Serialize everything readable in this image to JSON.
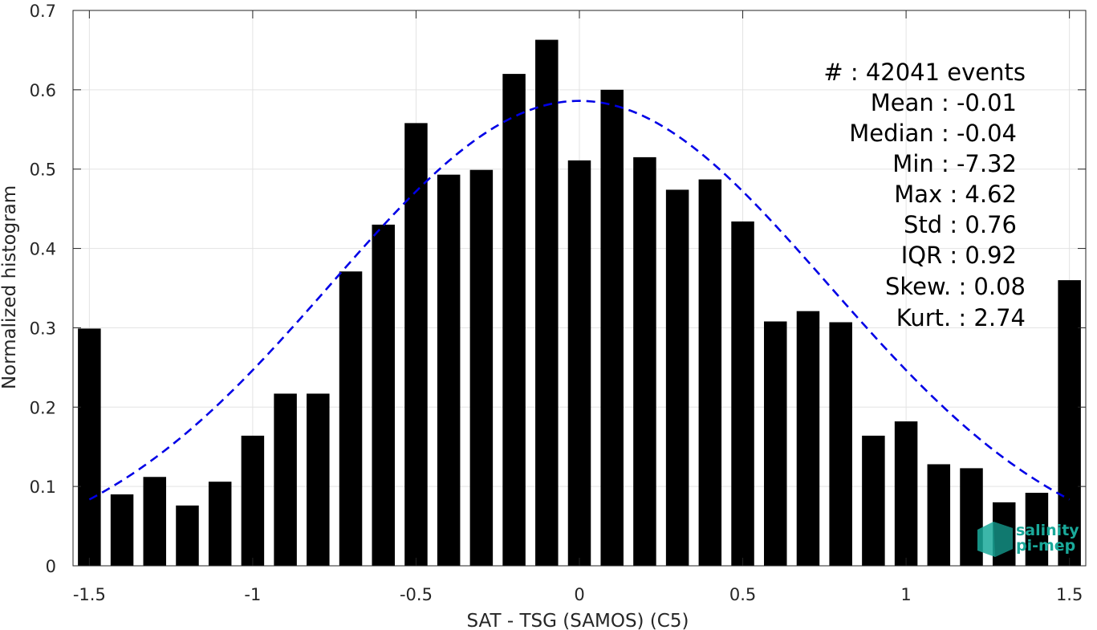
{
  "chart_data": {
    "type": "bar",
    "xlabel": "SAT - TSG (SAMOS) (C5)",
    "ylabel": "Normalized histogram",
    "xlim": [
      -1.55,
      1.55
    ],
    "ylim": [
      0,
      0.7
    ],
    "xticks": [
      -1.5,
      -1,
      -0.5,
      0,
      0.5,
      1,
      1.5
    ],
    "xtick_labels": [
      "-1.5",
      "-1",
      "-0.5",
      "0",
      "0.5",
      "1",
      "1.5"
    ],
    "yticks": [
      0,
      0.1,
      0.2,
      0.3,
      0.4,
      0.5,
      0.6,
      0.7
    ],
    "ytick_labels": [
      "0",
      "0.1",
      "0.2",
      "0.3",
      "0.4",
      "0.5",
      "0.6",
      "0.7"
    ],
    "grid": true,
    "bar_color": "#000000",
    "bar_width": 0.07,
    "bars": {
      "x": [
        -1.5,
        -1.4,
        -1.3,
        -1.2,
        -1.1,
        -1.0,
        -0.9,
        -0.8,
        -0.7,
        -0.6,
        -0.5,
        -0.4,
        -0.3,
        -0.2,
        -0.1,
        0.0,
        0.1,
        0.2,
        0.3,
        0.4,
        0.5,
        0.6,
        0.7,
        0.8,
        0.9,
        1.0,
        1.1,
        1.2,
        1.3,
        1.4,
        1.5
      ],
      "values": [
        0.299,
        0.09,
        0.112,
        0.076,
        0.106,
        0.164,
        0.217,
        0.217,
        0.371,
        0.43,
        0.558,
        0.493,
        0.499,
        0.62,
        0.663,
        0.511,
        0.6,
        0.515,
        0.474,
        0.487,
        0.434,
        0.308,
        0.321,
        0.307,
        0.164,
        0.182,
        0.128,
        0.123,
        0.08,
        0.092,
        0.36
      ]
    },
    "fit_curve": {
      "style": "dashed",
      "color": "#0000e6",
      "mean": 0.0,
      "amplitude": 0.586,
      "sigma": 0.76,
      "x_range": [
        -1.5,
        1.5
      ]
    },
    "stats": [
      {
        "label": "#  : 42041 events"
      },
      {
        "label": "Mean : -0.01"
      },
      {
        "label": "Median : -0.04"
      },
      {
        "label": "Min : -7.32"
      },
      {
        "label": "Max : 4.62"
      },
      {
        "label": "Std : 0.76"
      },
      {
        "label": "IQR : 0.92"
      },
      {
        "label": "Skew. : 0.08"
      },
      {
        "label": "Kurt. : 2.74"
      }
    ]
  },
  "logo": {
    "line1": "salinity",
    "line2": "pi-mep",
    "color": "#1aa99a"
  }
}
